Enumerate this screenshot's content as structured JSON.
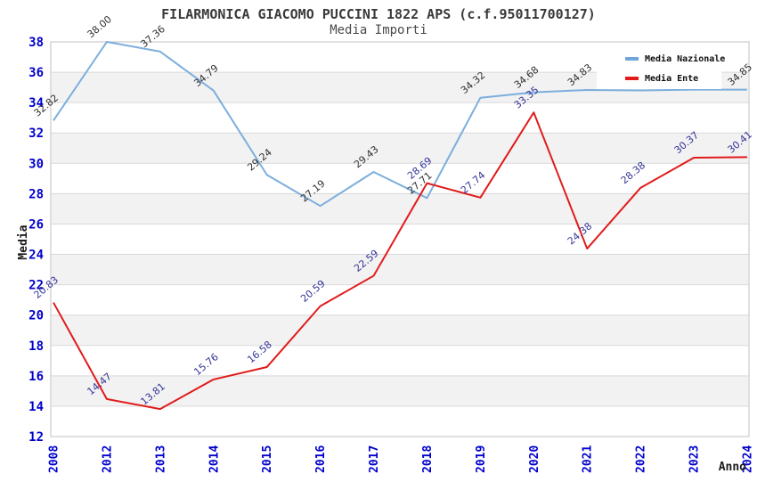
{
  "title": "FILARMONICA GIACOMO PUCCINI 1822 APS (c.f.95011700127)",
  "subtitle": "Media Importi",
  "axes": {
    "y_title": "Media",
    "x_title": "Anno",
    "tick_color": "#0000cd",
    "y_ticks": [
      12,
      14,
      16,
      18,
      20,
      22,
      24,
      26,
      28,
      30,
      32,
      34,
      36,
      38
    ]
  },
  "legend": [
    {
      "name": "Media Nazionale",
      "color": "#6fa6da"
    },
    {
      "name": "Media Ente",
      "color": "#e11b1b"
    }
  ],
  "colors": {
    "plot_border": "#c0c0c0",
    "gridline": "#d9d9d9",
    "band": "#f2f2f2",
    "background": "#ffffff"
  },
  "chart_data": {
    "type": "line",
    "x": [
      "2008",
      "2012",
      "2013",
      "2014",
      "2015",
      "2016",
      "2017",
      "2018",
      "2019",
      "2020",
      "2021",
      "2022",
      "2023",
      "2024"
    ],
    "ylim": [
      12,
      38
    ],
    "ytick_step": 2,
    "grid": "horizontal-with-alternating-bands",
    "legend_position": "top-right-inside",
    "series": [
      {
        "name": "Media Nazionale",
        "color": "#7caedd",
        "label_color": "#303030",
        "values": [
          32.82,
          38.0,
          37.36,
          34.79,
          29.24,
          27.19,
          29.43,
          27.71,
          34.32,
          34.68,
          34.83,
          34.8,
          34.85,
          34.85
        ],
        "labels": [
          "32.82",
          "38.00",
          "37.36",
          "34.79",
          "29.24",
          "27.19",
          "29.43",
          "27.71",
          "34.32",
          "34.68",
          "34.83",
          "",
          "",
          "34.85"
        ]
      },
      {
        "name": "Media Ente",
        "color": "#e11b1b",
        "label_color": "#333399",
        "values": [
          20.83,
          14.47,
          13.81,
          15.76,
          16.58,
          20.59,
          22.59,
          28.69,
          27.74,
          33.35,
          24.38,
          28.38,
          30.37,
          30.41
        ],
        "labels": [
          "20.83",
          "14.47",
          "13.81",
          "15.76",
          "16.58",
          "20.59",
          "22.59",
          "28.69",
          "27.74",
          "33.35",
          "24.38",
          "28.38",
          "30.37",
          "30.41"
        ]
      }
    ]
  }
}
